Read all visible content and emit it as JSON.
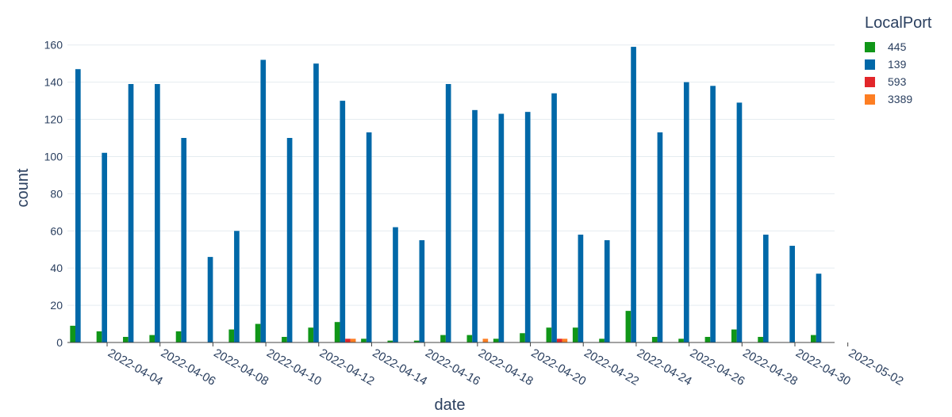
{
  "chart_data": {
    "type": "bar",
    "barmode": "group",
    "xlabel": "date",
    "ylabel": "count",
    "ylim": [
      0,
      165
    ],
    "yticks": [
      0,
      20,
      40,
      60,
      80,
      100,
      120,
      140,
      160
    ],
    "grid": true,
    "legend": {
      "title": "LocalPort",
      "placement": "top-right"
    },
    "xticks": [
      "2022-04-04",
      "2022-04-06",
      "2022-04-08",
      "2022-04-10",
      "2022-04-12",
      "2022-04-14",
      "2022-04-16",
      "2022-04-18",
      "2022-04-20",
      "2022-04-22",
      "2022-04-24",
      "2022-04-26",
      "2022-04-28",
      "2022-04-30",
      "2022-05-02"
    ],
    "categories": [
      "2022-04-03",
      "2022-04-04",
      "2022-04-05",
      "2022-04-06",
      "2022-04-07",
      "2022-04-08",
      "2022-04-09",
      "2022-04-10",
      "2022-04-11",
      "2022-04-12",
      "2022-04-13",
      "2022-04-14",
      "2022-04-15",
      "2022-04-16",
      "2022-04-17",
      "2022-04-18",
      "2022-04-19",
      "2022-04-20",
      "2022-04-21",
      "2022-04-22",
      "2022-04-23",
      "2022-04-24",
      "2022-04-25",
      "2022-04-26",
      "2022-04-27",
      "2022-04-28",
      "2022-04-29",
      "2022-04-30",
      "2022-05-01"
    ],
    "series": [
      {
        "name": "445",
        "color": "#109618",
        "values": [
          9,
          6,
          3,
          4,
          6,
          0,
          7,
          10,
          3,
          8,
          11,
          2,
          1,
          1,
          4,
          4,
          2,
          5,
          8,
          8,
          2,
          17,
          3,
          2,
          3,
          7,
          3,
          0,
          4
        ]
      },
      {
        "name": "139",
        "color": "#0068a8",
        "values": [
          147,
          102,
          139,
          139,
          110,
          46,
          60,
          152,
          110,
          150,
          130,
          113,
          62,
          55,
          139,
          125,
          123,
          124,
          134,
          58,
          55,
          159,
          113,
          140,
          138,
          129,
          58,
          52,
          37
        ]
      },
      {
        "name": "593",
        "color": "#e2262a",
        "values": [
          0,
          0,
          0,
          0,
          0,
          0,
          0,
          0,
          0,
          0,
          2,
          0,
          0,
          0,
          0,
          0,
          0,
          0,
          2,
          0,
          0,
          0,
          0,
          0,
          0,
          0,
          0,
          0,
          0
        ]
      },
      {
        "name": "3389",
        "color": "#fd7e23",
        "values": [
          0,
          0,
          0,
          0,
          0,
          0,
          0,
          0,
          0,
          0,
          2,
          0,
          0,
          0,
          0,
          2,
          0,
          0,
          2,
          0,
          0,
          0,
          0,
          0,
          0,
          0,
          0,
          0,
          0
        ]
      }
    ]
  }
}
